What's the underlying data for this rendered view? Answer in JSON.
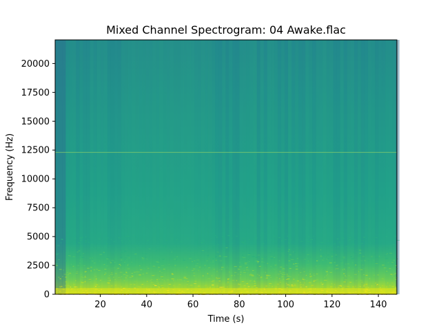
{
  "chart_data": {
    "type": "heatmap",
    "title": "Mixed Channel Spectrogram: 04 Awake.flac",
    "xlabel": "Time (s)",
    "ylabel": "Frequency (Hz)",
    "xlim": [
      0.5,
      148
    ],
    "ylim": [
      0,
      22050
    ],
    "x_ticks": [
      20,
      40,
      60,
      80,
      100,
      120,
      140
    ],
    "y_ticks": [
      0,
      2500,
      5000,
      7500,
      10000,
      12500,
      15000,
      17500,
      20000
    ],
    "x_tick_labels": [
      "20",
      "40",
      "60",
      "80",
      "100",
      "120",
      "140"
    ],
    "y_tick_labels": [
      "0",
      "2500",
      "5000",
      "7500",
      "10000",
      "12500",
      "15000",
      "17500",
      "20000"
    ],
    "colormap": "viridis",
    "colors": {
      "low": "#2f8f8c",
      "mid": "#2aa88a",
      "high": "#c8e020"
    },
    "features": {
      "faint_horizontal_line_hz": 12300,
      "bright_band_below_hz": 1500,
      "loud_section_time_s": [
        68,
        125
      ]
    }
  }
}
